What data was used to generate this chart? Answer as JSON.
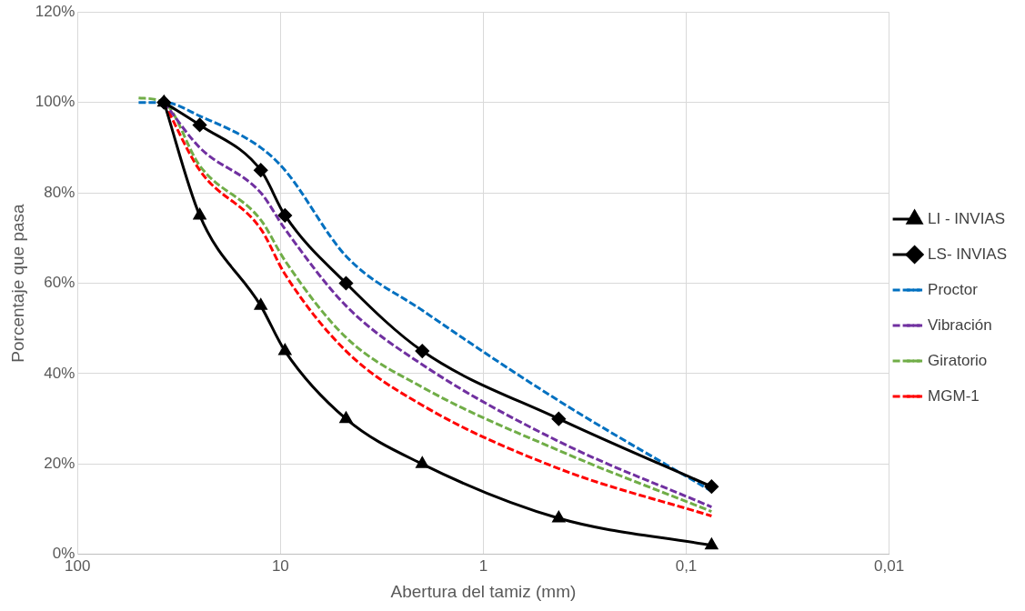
{
  "chart_data": {
    "type": "line",
    "xlabel": "Abertura del tamiz (mm)",
    "ylabel": "Porcentaje que pasa",
    "log": "x",
    "grid": true,
    "legend": "right",
    "xlim": [
      100,
      0.01
    ],
    "xticks": [
      100,
      10,
      1,
      {
        "value": 0.1,
        "label": "0,1"
      },
      {
        "value": 0.01,
        "label": "0,01"
      }
    ],
    "ylim": [
      0,
      120
    ],
    "yticks": [
      {
        "value": 0,
        "label": "0%"
      },
      {
        "value": 20,
        "label": "20%"
      },
      {
        "value": 40,
        "label": "40%"
      },
      {
        "value": 60,
        "label": "60%"
      },
      {
        "value": 80,
        "label": "80%"
      },
      {
        "value": 100,
        "label": "100%"
      },
      {
        "value": 120,
        "label": "120%"
      }
    ],
    "x": [
      50,
      37.5,
      25,
      12.5,
      9.5,
      4.75,
      2,
      0.425,
      0.075
    ],
    "series": [
      {
        "name": "LI - INVIAS",
        "color": "#000000",
        "marker": "triangle",
        "line_style": "solid",
        "values": [
          null,
          100,
          75,
          55,
          45,
          30,
          20,
          8,
          2
        ]
      },
      {
        "name": "LS- INVIAS",
        "color": "#000000",
        "marker": "diamond",
        "line_style": "solid",
        "values": [
          null,
          100,
          95,
          85,
          75,
          60,
          45,
          30,
          15
        ]
      },
      {
        "name": "Proctor",
        "color": "#0070c0",
        "marker": "none",
        "line_style": "dashed",
        "values": [
          100,
          100,
          97,
          90,
          85,
          66,
          54,
          34,
          14
        ]
      },
      {
        "name": "Vibración",
        "color": "#7030a0",
        "marker": "none",
        "line_style": "dashed",
        "values": [
          null,
          100,
          90,
          80,
          72,
          55,
          42,
          25,
          10.5
        ]
      },
      {
        "name": "Giratorio",
        "color": "#70ad47",
        "marker": "none",
        "line_style": "dashed",
        "values": [
          101,
          100,
          86,
          74,
          65,
          48,
          37,
          23,
          9.5
        ]
      },
      {
        "name": "MGM-1",
        "color": "#ff0000",
        "marker": "none",
        "line_style": "dashed",
        "values": [
          null,
          100,
          85,
          72,
          62,
          45,
          33,
          19,
          8.5
        ]
      }
    ]
  }
}
